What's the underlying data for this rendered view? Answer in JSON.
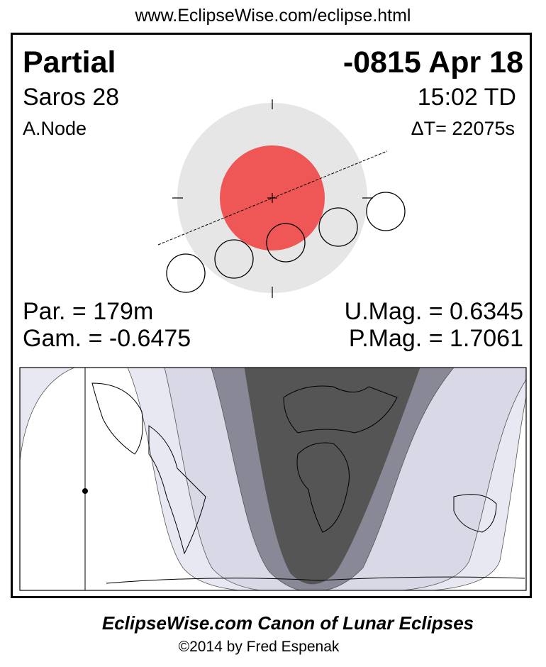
{
  "url": "www.EclipseWise.com/eclipse.html",
  "eclipse": {
    "type": "Partial",
    "date": "-0815 Apr 18",
    "saros": "Saros  28",
    "time": "15:02 TD",
    "node": "A.Node",
    "delta_t": "ΔT=  22075s",
    "partial_duration": "Par. = 179m",
    "gamma": "Gam. = -0.6475",
    "umbral_magnitude": "U.Mag. = 0.6345",
    "penumbral_magnitude": "P.Mag. = 1.7061"
  },
  "colors": {
    "penumbra": "#e6e6e6",
    "umbra": "#ef5656",
    "map_dark": "#555555",
    "map_medium": "#888896",
    "map_light": "#d8d8e6",
    "map_lightest": "#e8e8f2"
  },
  "footer": {
    "title": "EclipseWise.com Canon of Lunar Eclipses",
    "copyright": "©2014 by Fred Espenak"
  }
}
